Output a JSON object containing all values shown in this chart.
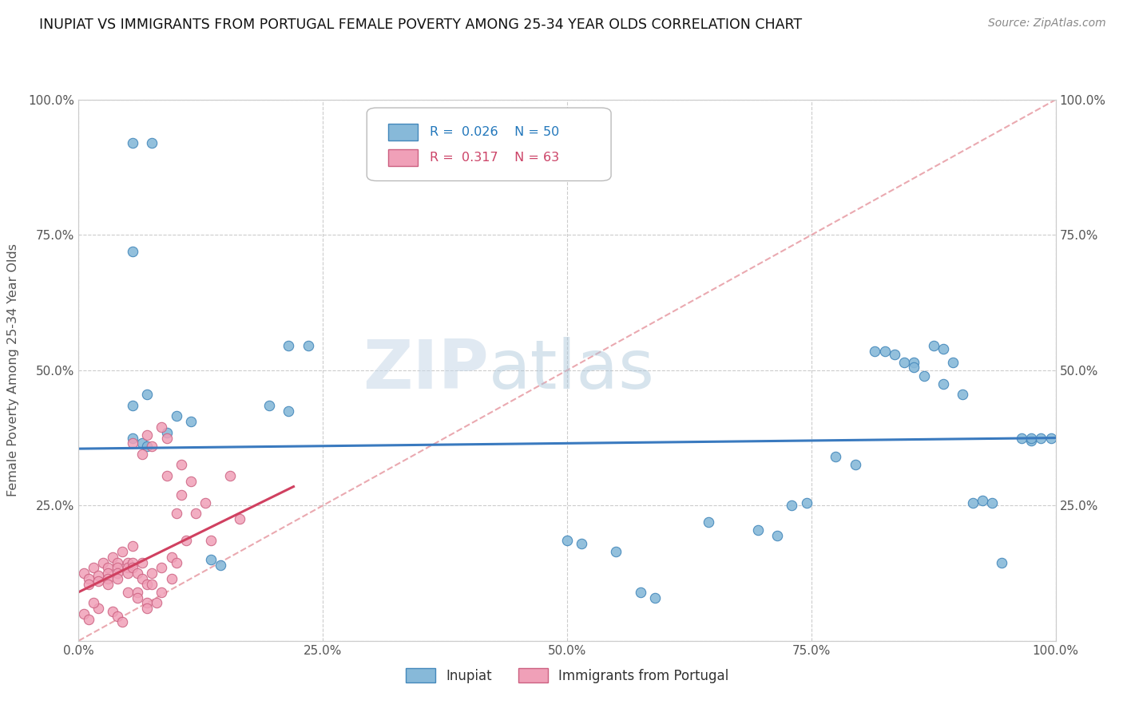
{
  "title": "INUPIAT VS IMMIGRANTS FROM PORTUGAL FEMALE POVERTY AMONG 25-34 YEAR OLDS CORRELATION CHART",
  "source": "Source: ZipAtlas.com",
  "ylabel": "Female Poverty Among 25-34 Year Olds",
  "xlim": [
    0,
    1.0
  ],
  "ylim": [
    0,
    1.0
  ],
  "xtick_labels": [
    "0.0%",
    "25.0%",
    "50.0%",
    "75.0%",
    "100.0%"
  ],
  "xtick_vals": [
    0.0,
    0.25,
    0.5,
    0.75,
    1.0
  ],
  "ytick_labels": [
    "",
    "25.0%",
    "50.0%",
    "75.0%",
    "100.0%"
  ],
  "ytick_vals": [
    0.0,
    0.25,
    0.5,
    0.75,
    1.0
  ],
  "right_ytick_labels": [
    "",
    "25.0%",
    "50.0%",
    "75.0%",
    "100.0%"
  ],
  "right_ytick_vals": [
    0.0,
    0.25,
    0.5,
    0.75,
    1.0
  ],
  "watermark_zip": "ZIP",
  "watermark_atlas": "atlas",
  "blue_color": "#87b9d9",
  "pink_color": "#f0a0b8",
  "blue_line_color": "#3a7abf",
  "pink_line_color": "#d04060",
  "diag_line_color": "#e8a0a8",
  "blue_line_y0": 0.355,
  "blue_line_y1": 0.375,
  "pink_line_x0": 0.0,
  "pink_line_y0": 0.09,
  "pink_line_x1": 0.22,
  "pink_line_y1": 0.285,
  "inupiat_points": [
    [
      0.055,
      0.92
    ],
    [
      0.075,
      0.92
    ],
    [
      0.055,
      0.72
    ],
    [
      0.07,
      0.455
    ],
    [
      0.055,
      0.435
    ],
    [
      0.1,
      0.415
    ],
    [
      0.115,
      0.405
    ],
    [
      0.09,
      0.385
    ],
    [
      0.055,
      0.375
    ],
    [
      0.065,
      0.365
    ],
    [
      0.07,
      0.36
    ],
    [
      0.215,
      0.545
    ],
    [
      0.235,
      0.545
    ],
    [
      0.195,
      0.435
    ],
    [
      0.215,
      0.425
    ],
    [
      0.135,
      0.15
    ],
    [
      0.145,
      0.14
    ],
    [
      0.5,
      0.185
    ],
    [
      0.515,
      0.18
    ],
    [
      0.55,
      0.165
    ],
    [
      0.575,
      0.09
    ],
    [
      0.59,
      0.08
    ],
    [
      0.645,
      0.22
    ],
    [
      0.695,
      0.205
    ],
    [
      0.715,
      0.195
    ],
    [
      0.73,
      0.25
    ],
    [
      0.745,
      0.255
    ],
    [
      0.775,
      0.34
    ],
    [
      0.795,
      0.325
    ],
    [
      0.815,
      0.535
    ],
    [
      0.835,
      0.53
    ],
    [
      0.825,
      0.535
    ],
    [
      0.845,
      0.515
    ],
    [
      0.855,
      0.515
    ],
    [
      0.855,
      0.505
    ],
    [
      0.865,
      0.49
    ],
    [
      0.875,
      0.545
    ],
    [
      0.885,
      0.54
    ],
    [
      0.885,
      0.475
    ],
    [
      0.895,
      0.515
    ],
    [
      0.905,
      0.455
    ],
    [
      0.915,
      0.255
    ],
    [
      0.925,
      0.26
    ],
    [
      0.935,
      0.255
    ],
    [
      0.945,
      0.145
    ],
    [
      0.965,
      0.375
    ],
    [
      0.975,
      0.37
    ],
    [
      0.975,
      0.375
    ],
    [
      0.985,
      0.375
    ],
    [
      0.995,
      0.375
    ]
  ],
  "portugal_points": [
    [
      0.005,
      0.125
    ],
    [
      0.01,
      0.115
    ],
    [
      0.01,
      0.105
    ],
    [
      0.015,
      0.135
    ],
    [
      0.02,
      0.12
    ],
    [
      0.02,
      0.11
    ],
    [
      0.025,
      0.145
    ],
    [
      0.03,
      0.135
    ],
    [
      0.03,
      0.125
    ],
    [
      0.03,
      0.115
    ],
    [
      0.03,
      0.105
    ],
    [
      0.035,
      0.155
    ],
    [
      0.04,
      0.145
    ],
    [
      0.04,
      0.135
    ],
    [
      0.04,
      0.125
    ],
    [
      0.04,
      0.115
    ],
    [
      0.045,
      0.165
    ],
    [
      0.05,
      0.145
    ],
    [
      0.05,
      0.135
    ],
    [
      0.05,
      0.125
    ],
    [
      0.05,
      0.09
    ],
    [
      0.055,
      0.175
    ],
    [
      0.055,
      0.145
    ],
    [
      0.055,
      0.135
    ],
    [
      0.06,
      0.125
    ],
    [
      0.06,
      0.09
    ],
    [
      0.06,
      0.08
    ],
    [
      0.065,
      0.145
    ],
    [
      0.065,
      0.115
    ],
    [
      0.07,
      0.105
    ],
    [
      0.07,
      0.07
    ],
    [
      0.07,
      0.06
    ],
    [
      0.075,
      0.125
    ],
    [
      0.075,
      0.105
    ],
    [
      0.08,
      0.07
    ],
    [
      0.085,
      0.135
    ],
    [
      0.085,
      0.09
    ],
    [
      0.09,
      0.305
    ],
    [
      0.095,
      0.155
    ],
    [
      0.095,
      0.115
    ],
    [
      0.1,
      0.235
    ],
    [
      0.1,
      0.145
    ],
    [
      0.105,
      0.325
    ],
    [
      0.105,
      0.27
    ],
    [
      0.11,
      0.185
    ],
    [
      0.115,
      0.295
    ],
    [
      0.12,
      0.235
    ],
    [
      0.13,
      0.255
    ],
    [
      0.135,
      0.185
    ],
    [
      0.155,
      0.305
    ],
    [
      0.165,
      0.225
    ],
    [
      0.055,
      0.365
    ],
    [
      0.065,
      0.345
    ],
    [
      0.07,
      0.38
    ],
    [
      0.075,
      0.36
    ],
    [
      0.085,
      0.395
    ],
    [
      0.09,
      0.375
    ],
    [
      0.035,
      0.055
    ],
    [
      0.04,
      0.045
    ],
    [
      0.045,
      0.035
    ],
    [
      0.005,
      0.05
    ],
    [
      0.01,
      0.04
    ],
    [
      0.02,
      0.06
    ],
    [
      0.015,
      0.07
    ]
  ]
}
